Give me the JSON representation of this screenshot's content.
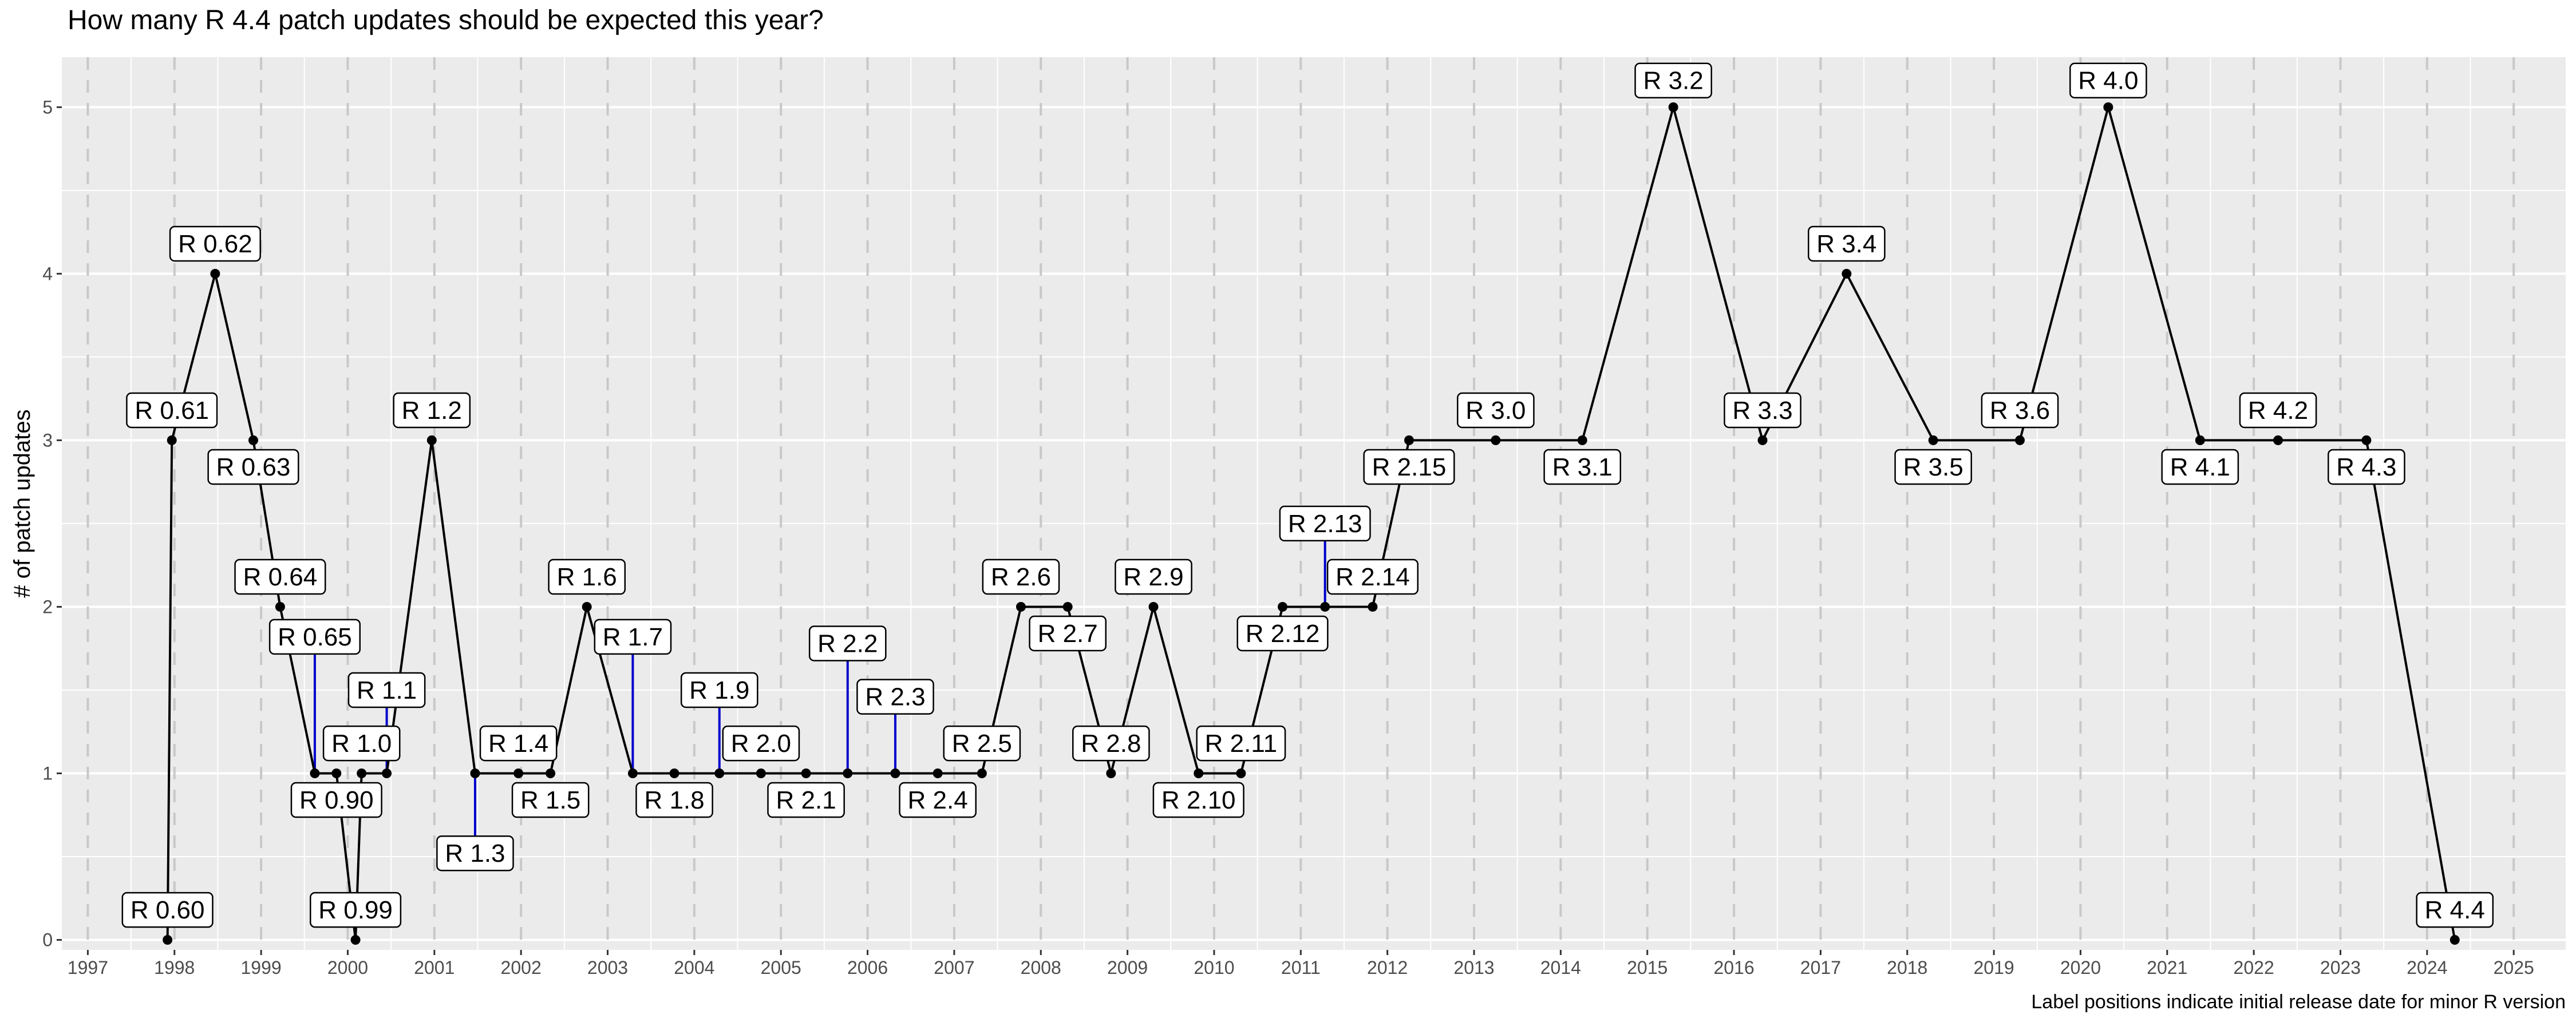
{
  "chart_data": {
    "type": "line",
    "title": "How many R 4.4 patch updates should be expected this year?",
    "ylabel": "# of patch updates",
    "xlabel": "",
    "caption": "Label positions indicate initial release date for minor R version",
    "xlim": [
      1996.7,
      2025.6
    ],
    "ylim": [
      -0.06,
      5.3
    ],
    "x_ticks": [
      1997,
      1998,
      1999,
      2000,
      2001,
      2002,
      2003,
      2004,
      2005,
      2006,
      2007,
      2008,
      2009,
      2010,
      2011,
      2012,
      2013,
      2014,
      2015,
      2016,
      2017,
      2018,
      2019,
      2020,
      2021,
      2022,
      2023,
      2024,
      2025
    ],
    "x_tick_labels": [
      "1997",
      "1998",
      "1999",
      "2000",
      "2001",
      "2002",
      "2003",
      "2004",
      "2005",
      "2006",
      "2007",
      "2008",
      "2009",
      "2010",
      "2011",
      "2012",
      "2013",
      "2014",
      "2015",
      "2016",
      "2017",
      "2018",
      "2019",
      "2020",
      "2021",
      "2022",
      "2023",
      "2024",
      "2025"
    ],
    "y_ticks": [
      0,
      1,
      2,
      3,
      4,
      5
    ],
    "y_tick_labels": [
      "0",
      "1",
      "2",
      "3",
      "4",
      "5"
    ],
    "grid": true,
    "vertical_dashed_grid": true,
    "colors": {
      "panel": "#ebebeb",
      "grid": "#ffffff",
      "dashed": "#c8c8c8",
      "line": "#000000",
      "leader": "#0000cc",
      "label_fill": "#ffffff",
      "label_border": "#000000"
    },
    "series": [
      {
        "points": [
          {
            "label": "R 0.60",
            "x": 1997.92,
            "y": 0,
            "label_x": 1997.92,
            "label_y": 0.18
          },
          {
            "label": "R 0.61",
            "x": 1997.97,
            "y": 3,
            "label_x": 1997.97,
            "label_y": 3.18
          },
          {
            "label": "R 0.62",
            "x": 1998.47,
            "y": 4,
            "label_x": 1998.47,
            "label_y": 4.18
          },
          {
            "label": "R 0.63",
            "x": 1998.91,
            "y": 3,
            "label_x": 1998.91,
            "label_y": 2.84
          },
          {
            "label": "R 0.64",
            "x": 1999.22,
            "y": 2,
            "label_x": 1999.22,
            "label_y": 2.18
          },
          {
            "label": "R 0.65",
            "x": 1999.62,
            "y": 1,
            "label_x": 1999.62,
            "label_y": 1.82
          },
          {
            "label": "R 0.90",
            "x": 1999.87,
            "y": 1,
            "label_x": 1999.87,
            "label_y": 0.84
          },
          {
            "label": "R 0.99",
            "x": 2000.09,
            "y": 0,
            "label_x": 2000.09,
            "label_y": 0.18
          },
          {
            "label": "R 1.0",
            "x": 2000.16,
            "y": 1,
            "label_x": 2000.16,
            "label_y": 1.18
          },
          {
            "label": "R 1.1",
            "x": 2000.45,
            "y": 1,
            "label_x": 2000.45,
            "label_y": 1.5
          },
          {
            "label": "R 1.2",
            "x": 2000.97,
            "y": 3,
            "label_x": 2000.97,
            "label_y": 3.18
          },
          {
            "label": "R 1.3",
            "x": 2001.47,
            "y": 1,
            "label_x": 2001.47,
            "label_y": 0.52
          },
          {
            "label": "R 1.4",
            "x": 2001.97,
            "y": 1,
            "label_x": 2001.97,
            "label_y": 1.18
          },
          {
            "label": "R 1.5",
            "x": 2002.34,
            "y": 1,
            "label_x": 2002.34,
            "label_y": 0.84
          },
          {
            "label": "R 1.6",
            "x": 2002.76,
            "y": 2,
            "label_x": 2002.76,
            "label_y": 2.18
          },
          {
            "label": "R 1.7",
            "x": 2003.29,
            "y": 1,
            "label_x": 2003.29,
            "label_y": 1.82
          },
          {
            "label": "R 1.8",
            "x": 2003.77,
            "y": 1,
            "label_x": 2003.77,
            "label_y": 0.84
          },
          {
            "label": "R 1.9",
            "x": 2004.29,
            "y": 1,
            "label_x": 2004.29,
            "label_y": 1.5
          },
          {
            "label": "R 2.0",
            "x": 2004.77,
            "y": 1,
            "label_x": 2004.77,
            "label_y": 1.18
          },
          {
            "label": "R 2.1",
            "x": 2005.29,
            "y": 1,
            "label_x": 2005.29,
            "label_y": 0.84
          },
          {
            "label": "R 2.2",
            "x": 2005.77,
            "y": 1,
            "label_x": 2005.77,
            "label_y": 1.78
          },
          {
            "label": "R 2.3",
            "x": 2006.32,
            "y": 1,
            "label_x": 2006.32,
            "label_y": 1.46
          },
          {
            "label": "R 2.4",
            "x": 2006.81,
            "y": 1,
            "label_x": 2006.81,
            "label_y": 0.84
          },
          {
            "label": "R 2.5",
            "x": 2007.32,
            "y": 1,
            "label_x": 2007.32,
            "label_y": 1.18
          },
          {
            "label": "R 2.6",
            "x": 2007.77,
            "y": 2,
            "label_x": 2007.77,
            "label_y": 2.18
          },
          {
            "label": "R 2.7",
            "x": 2008.31,
            "y": 2,
            "label_x": 2008.31,
            "label_y": 1.84
          },
          {
            "label": "R 2.8",
            "x": 2008.81,
            "y": 1,
            "label_x": 2008.81,
            "label_y": 1.18
          },
          {
            "label": "R 2.9",
            "x": 2009.3,
            "y": 2,
            "label_x": 2009.3,
            "label_y": 2.18
          },
          {
            "label": "R 2.10",
            "x": 2009.82,
            "y": 1,
            "label_x": 2009.82,
            "label_y": 0.84
          },
          {
            "label": "R 2.11",
            "x": 2010.31,
            "y": 1,
            "label_x": 2010.31,
            "label_y": 1.18
          },
          {
            "label": "R 2.12",
            "x": 2010.79,
            "y": 2,
            "label_x": 2010.79,
            "label_y": 1.84
          },
          {
            "label": "R 2.13",
            "x": 2011.28,
            "y": 2,
            "label_x": 2011.28,
            "label_y": 2.5
          },
          {
            "label": "R 2.14",
            "x": 2011.83,
            "y": 2,
            "label_x": 2011.83,
            "label_y": 2.18
          },
          {
            "label": "R 2.15",
            "x": 2012.25,
            "y": 3,
            "label_x": 2012.25,
            "label_y": 2.84
          },
          {
            "label": "R 3.0",
            "x": 2013.25,
            "y": 3,
            "label_x": 2013.25,
            "label_y": 3.18
          },
          {
            "label": "R 3.1",
            "x": 2014.25,
            "y": 3,
            "label_x": 2014.25,
            "label_y": 2.84
          },
          {
            "label": "R 3.2",
            "x": 2015.3,
            "y": 5,
            "label_x": 2015.3,
            "label_y": 5.16
          },
          {
            "label": "R 3.3",
            "x": 2016.33,
            "y": 3,
            "label_x": 2016.33,
            "label_y": 3.18
          },
          {
            "label": "R 3.4",
            "x": 2017.3,
            "y": 4,
            "label_x": 2017.3,
            "label_y": 4.18
          },
          {
            "label": "R 3.5",
            "x": 2018.3,
            "y": 3,
            "label_x": 2018.3,
            "label_y": 2.84
          },
          {
            "label": "R 3.6",
            "x": 2019.3,
            "y": 3,
            "label_x": 2019.3,
            "label_y": 3.18
          },
          {
            "label": "R 4.0",
            "x": 2020.32,
            "y": 5,
            "label_x": 2020.32,
            "label_y": 5.16
          },
          {
            "label": "R 4.1",
            "x": 2021.38,
            "y": 3,
            "label_x": 2021.38,
            "label_y": 2.84
          },
          {
            "label": "R 4.2",
            "x": 2022.28,
            "y": 3,
            "label_x": 2022.28,
            "label_y": 3.18
          },
          {
            "label": "R 4.3",
            "x": 2023.3,
            "y": 3,
            "label_x": 2023.3,
            "label_y": 2.84
          },
          {
            "label": "R 4.4",
            "x": 2024.32,
            "y": 0,
            "label_x": 2024.32,
            "label_y": 0.18
          }
        ]
      }
    ]
  }
}
